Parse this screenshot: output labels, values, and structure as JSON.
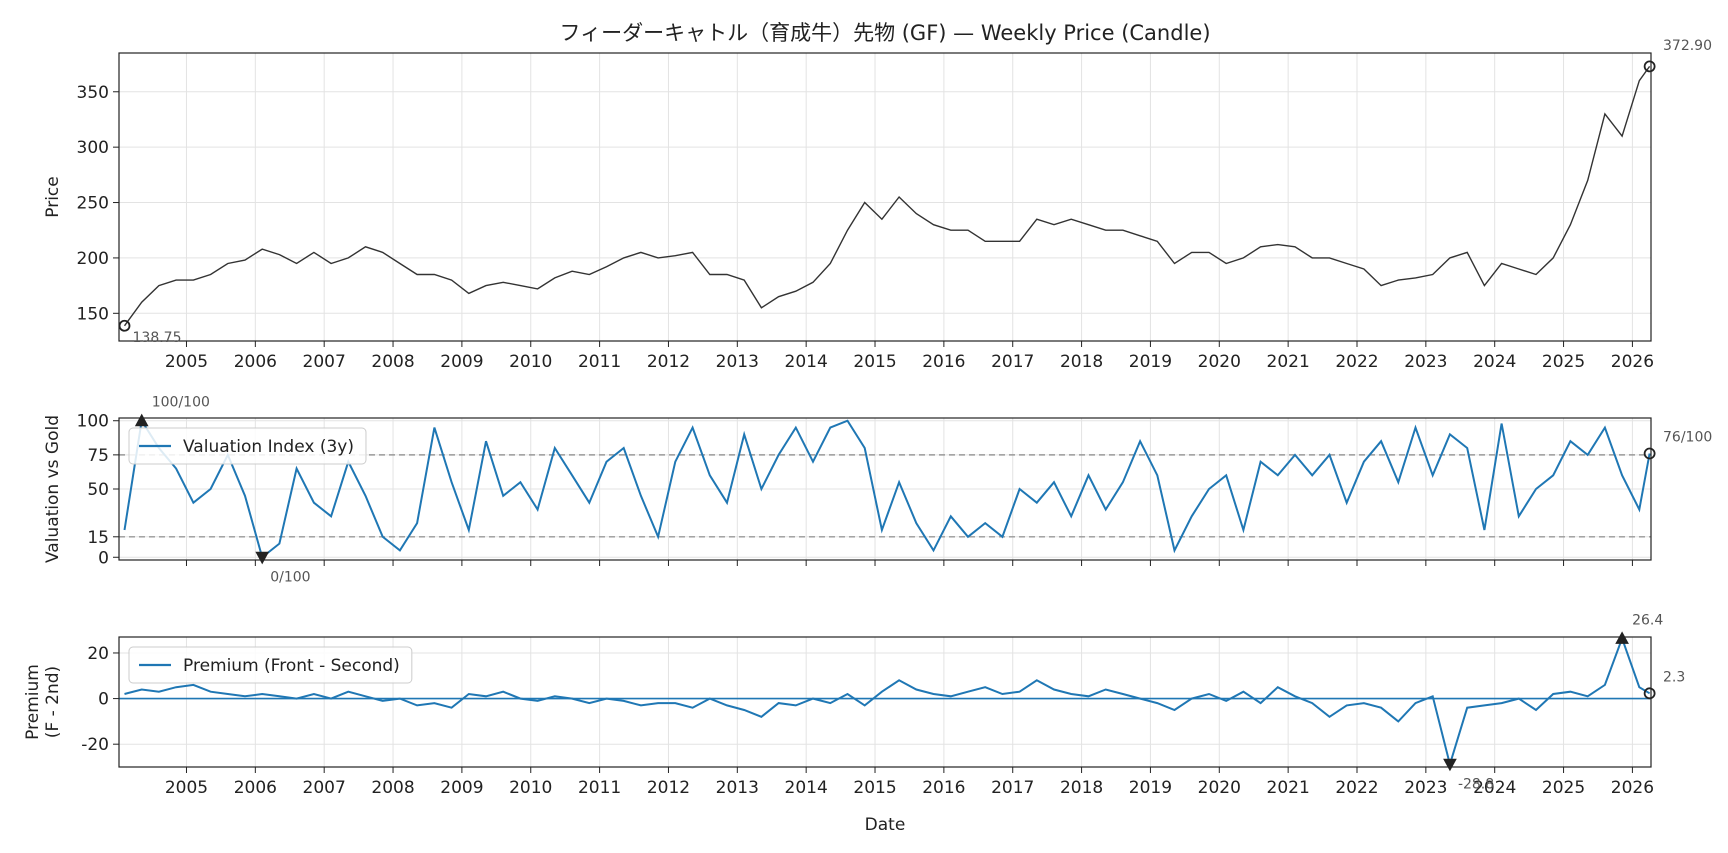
{
  "chart_data": [
    {
      "type": "line",
      "title": "フィーダーキャトル（育成牛）先物 (GF) — Weekly Price (Candle)",
      "ylabel": "Price",
      "xlim": [
        2004.02,
        2026.27
      ],
      "xticks": [
        2005,
        2006,
        2007,
        2008,
        2009,
        2010,
        2011,
        2012,
        2013,
        2014,
        2015,
        2016,
        2017,
        2018,
        2019,
        2020,
        2021,
        2022,
        2023,
        2024,
        2025,
        2026
      ],
      "ylim": [
        125,
        385
      ],
      "yticks": [
        150,
        200,
        250,
        300,
        350
      ],
      "grid": true,
      "x": [
        2004.1,
        2004.35,
        2004.6,
        2004.85,
        2005.1,
        2005.35,
        2005.6,
        2005.85,
        2006.1,
        2006.35,
        2006.6,
        2006.85,
        2007.1,
        2007.35,
        2007.6,
        2007.85,
        2008.1,
        2008.35,
        2008.6,
        2008.85,
        2009.1,
        2009.35,
        2009.6,
        2009.85,
        2010.1,
        2010.35,
        2010.6,
        2010.85,
        2011.1,
        2011.35,
        2011.6,
        2011.85,
        2012.1,
        2012.35,
        2012.6,
        2012.85,
        2013.1,
        2013.35,
        2013.6,
        2013.85,
        2014.1,
        2014.35,
        2014.6,
        2014.85,
        2015.1,
        2015.35,
        2015.6,
        2015.85,
        2016.1,
        2016.35,
        2016.6,
        2016.85,
        2017.1,
        2017.35,
        2017.6,
        2017.85,
        2018.1,
        2018.35,
        2018.6,
        2018.85,
        2019.1,
        2019.35,
        2019.6,
        2019.85,
        2020.1,
        2020.35,
        2020.6,
        2020.85,
        2021.1,
        2021.35,
        2021.6,
        2021.85,
        2022.1,
        2022.35,
        2022.6,
        2022.85,
        2023.1,
        2023.35,
        2023.6,
        2023.85,
        2024.1,
        2024.35,
        2024.6,
        2024.85,
        2025.1,
        2025.35,
        2025.6,
        2025.85,
        2026.1,
        2026.25
      ],
      "series": [
        {
          "color": "#333333",
          "values": [
            138.75,
            160,
            175,
            180,
            180,
            185,
            195,
            198,
            208,
            203,
            195,
            205,
            195,
            200,
            210,
            205,
            195,
            185,
            185,
            180,
            168,
            175,
            178,
            175,
            172,
            182,
            188,
            185,
            192,
            200,
            205,
            200,
            202,
            205,
            185,
            185,
            180,
            155,
            165,
            170,
            178,
            195,
            225,
            250,
            235,
            255,
            240,
            230,
            225,
            225,
            215,
            215,
            215,
            235,
            230,
            235,
            230,
            225,
            225,
            220,
            215,
            195,
            205,
            205,
            195,
            200,
            210,
            212,
            210,
            200,
            200,
            195,
            190,
            175,
            180,
            182,
            185,
            200,
            205,
            175,
            195,
            190,
            185,
            200,
            230,
            270,
            330,
            310,
            360,
            372.9
          ]
        }
      ],
      "annotations": [
        {
          "kind": "last",
          "x": 2026.25,
          "y": 372.9,
          "label": "372.90"
        },
        {
          "kind": "first",
          "x": 2004.1,
          "y": 138.75,
          "label": "138.75"
        }
      ]
    },
    {
      "type": "line",
      "ylabel": "Valuation vs Gold",
      "xlim": [
        2004.02,
        2026.27
      ],
      "xticks": [
        2005,
        2006,
        2007,
        2008,
        2009,
        2010,
        2011,
        2012,
        2013,
        2014,
        2015,
        2016,
        2017,
        2018,
        2019,
        2020,
        2021,
        2022,
        2023,
        2024,
        2025,
        2026
      ],
      "ylim": [
        -2,
        102
      ],
      "yticks": [
        0,
        15,
        50,
        75,
        100
      ],
      "grid": true,
      "hlines": [
        75,
        15
      ],
      "legend": "upper left",
      "x": [
        2004.1,
        2004.35,
        2004.6,
        2004.85,
        2005.1,
        2005.35,
        2005.6,
        2005.85,
        2006.1,
        2006.35,
        2006.6,
        2006.85,
        2007.1,
        2007.35,
        2007.6,
        2007.85,
        2008.1,
        2008.35,
        2008.6,
        2008.85,
        2009.1,
        2009.35,
        2009.6,
        2009.85,
        2010.1,
        2010.35,
        2010.6,
        2010.85,
        2011.1,
        2011.35,
        2011.6,
        2011.85,
        2012.1,
        2012.35,
        2012.6,
        2012.85,
        2013.1,
        2013.35,
        2013.6,
        2013.85,
        2014.1,
        2014.35,
        2014.6,
        2014.85,
        2015.1,
        2015.35,
        2015.6,
        2015.85,
        2016.1,
        2016.35,
        2016.6,
        2016.85,
        2017.1,
        2017.35,
        2017.6,
        2017.85,
        2018.1,
        2018.35,
        2018.6,
        2018.85,
        2019.1,
        2019.35,
        2019.6,
        2019.85,
        2020.1,
        2020.35,
        2020.6,
        2020.85,
        2021.1,
        2021.35,
        2021.6,
        2021.85,
        2022.1,
        2022.35,
        2022.6,
        2022.85,
        2023.1,
        2023.35,
        2023.6,
        2023.85,
        2024.1,
        2024.35,
        2024.6,
        2024.85,
        2025.1,
        2025.35,
        2025.6,
        2025.85,
        2026.1,
        2026.25
      ],
      "series": [
        {
          "name": "Valuation Index (3y)",
          "color": "#1f77b4",
          "values": [
            20,
            100,
            80,
            65,
            40,
            50,
            75,
            45,
            0,
            10,
            65,
            40,
            30,
            70,
            45,
            15,
            5,
            25,
            95,
            55,
            20,
            85,
            45,
            55,
            35,
            80,
            60,
            40,
            70,
            80,
            45,
            15,
            70,
            95,
            60,
            40,
            90,
            50,
            75,
            95,
            70,
            95,
            100,
            80,
            20,
            55,
            25,
            5,
            30,
            15,
            25,
            15,
            50,
            40,
            55,
            30,
            60,
            35,
            55,
            85,
            60,
            5,
            30,
            50,
            60,
            20,
            70,
            60,
            75,
            60,
            75,
            40,
            70,
            85,
            55,
            95,
            60,
            90,
            80,
            20,
            98,
            30,
            50,
            60,
            85,
            75,
            95,
            60,
            35,
            76
          ]
        }
      ],
      "annotations": [
        {
          "kind": "max",
          "x": 2004.35,
          "y": 100,
          "label": "100/100"
        },
        {
          "kind": "min",
          "x": 2006.1,
          "y": 0,
          "label": "0/100"
        },
        {
          "kind": "last",
          "x": 2026.25,
          "y": 76,
          "label": "76/100"
        }
      ]
    },
    {
      "type": "line",
      "ylabel": [
        "Premium",
        "(F - 2nd)"
      ],
      "xlabel": "Date",
      "xlim": [
        2004.02,
        2026.27
      ],
      "xticks": [
        2005,
        2006,
        2007,
        2008,
        2009,
        2010,
        2011,
        2012,
        2013,
        2014,
        2015,
        2016,
        2017,
        2018,
        2019,
        2020,
        2021,
        2022,
        2023,
        2024,
        2025,
        2026
      ],
      "ylim": [
        -30,
        27
      ],
      "yticks": [
        -20,
        0,
        20
      ],
      "grid": true,
      "hlines": [
        0
      ],
      "legend": "upper left",
      "x": [
        2004.1,
        2004.35,
        2004.6,
        2004.85,
        2005.1,
        2005.35,
        2005.6,
        2005.85,
        2006.1,
        2006.35,
        2006.6,
        2006.85,
        2007.1,
        2007.35,
        2007.6,
        2007.85,
        2008.1,
        2008.35,
        2008.6,
        2008.85,
        2009.1,
        2009.35,
        2009.6,
        2009.85,
        2010.1,
        2010.35,
        2010.6,
        2010.85,
        2011.1,
        2011.35,
        2011.6,
        2011.85,
        2012.1,
        2012.35,
        2012.6,
        2012.85,
        2013.1,
        2013.35,
        2013.6,
        2013.85,
        2014.1,
        2014.35,
        2014.6,
        2014.85,
        2015.1,
        2015.35,
        2015.6,
        2015.85,
        2016.1,
        2016.35,
        2016.6,
        2016.85,
        2017.1,
        2017.35,
        2017.6,
        2017.85,
        2018.1,
        2018.35,
        2018.6,
        2018.85,
        2019.1,
        2019.35,
        2019.6,
        2019.85,
        2020.1,
        2020.35,
        2020.6,
        2020.85,
        2021.1,
        2021.35,
        2021.6,
        2021.85,
        2022.1,
        2022.35,
        2022.6,
        2022.85,
        2023.1,
        2023.35,
        2023.6,
        2023.85,
        2024.1,
        2024.35,
        2024.6,
        2024.85,
        2025.1,
        2025.35,
        2025.6,
        2025.85,
        2026.1,
        2026.25
      ],
      "series": [
        {
          "name": "Premium (Front - Second)",
          "color": "#1f77b4",
          "values": [
            2,
            4,
            3,
            5,
            6,
            3,
            2,
            1,
            2,
            1,
            0,
            2,
            0,
            3,
            1,
            -1,
            0,
            -3,
            -2,
            -4,
            2,
            1,
            3,
            0,
            -1,
            1,
            0,
            -2,
            0,
            -1,
            -3,
            -2,
            -2,
            -4,
            0,
            -3,
            -5,
            -8,
            -2,
            -3,
            0,
            -2,
            2,
            -3,
            3,
            8,
            4,
            2,
            1,
            3,
            5,
            2,
            3,
            8,
            4,
            2,
            1,
            4,
            2,
            0,
            -2,
            -5,
            0,
            2,
            -1,
            3,
            -2,
            5,
            1,
            -2,
            -8,
            -3,
            -2,
            -4,
            -10,
            -2,
            1,
            -28.8,
            -4,
            -3,
            -2,
            0,
            -5,
            2,
            3,
            1,
            6,
            26.4,
            5,
            2.3
          ]
        }
      ],
      "annotations": [
        {
          "kind": "max",
          "x": 2025.85,
          "y": 26.4,
          "label": "26.4"
        },
        {
          "kind": "min",
          "x": 2023.35,
          "y": -28.8,
          "label": "-28.8"
        },
        {
          "kind": "last",
          "x": 2026.25,
          "y": 2.3,
          "label": "2.3"
        }
      ]
    }
  ]
}
